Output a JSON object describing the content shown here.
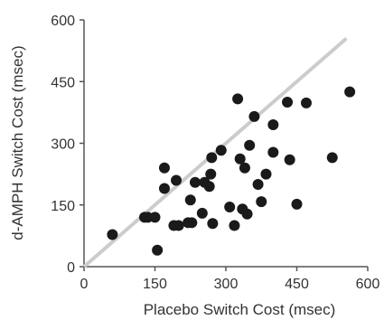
{
  "chart_data": {
    "type": "scatter",
    "title": "",
    "xlabel": "Placebo Switch Cost (msec)",
    "ylabel": "d-AMPH Switch Cost (msec)",
    "xlim": [
      0,
      600
    ],
    "ylim": [
      0,
      600
    ],
    "xticks": [
      "0",
      "150",
      "300",
      "450",
      "600"
    ],
    "yticks": [
      "0",
      "150",
      "300",
      "450",
      "600"
    ],
    "grid": false,
    "legend": "none",
    "reference_line": {
      "type": "identity",
      "from": [
        0,
        0
      ],
      "to": [
        555,
        555
      ],
      "color": "#cccccc"
    },
    "point_color": "#1a1a1a",
    "series": [
      {
        "points": [
          [
            60,
            78
          ],
          [
            128,
            120
          ],
          [
            135,
            120
          ],
          [
            150,
            120
          ],
          [
            155,
            40
          ],
          [
            170,
            240
          ],
          [
            170,
            190
          ],
          [
            190,
            100
          ],
          [
            195,
            210
          ],
          [
            200,
            100
          ],
          [
            220,
            107
          ],
          [
            228,
            107
          ],
          [
            225,
            162
          ],
          [
            235,
            205
          ],
          [
            250,
            130
          ],
          [
            255,
            205
          ],
          [
            265,
            195
          ],
          [
            268,
            225
          ],
          [
            272,
            105
          ],
          [
            270,
            265
          ],
          [
            290,
            283
          ],
          [
            308,
            145
          ],
          [
            318,
            100
          ],
          [
            325,
            408
          ],
          [
            330,
            262
          ],
          [
            335,
            140
          ],
          [
            340,
            240
          ],
          [
            345,
            128
          ],
          [
            350,
            295
          ],
          [
            360,
            365
          ],
          [
            368,
            200
          ],
          [
            375,
            158
          ],
          [
            385,
            225
          ],
          [
            400,
            345
          ],
          [
            400,
            278
          ],
          [
            430,
            400
          ],
          [
            435,
            260
          ],
          [
            450,
            152
          ],
          [
            470,
            398
          ],
          [
            525,
            265
          ],
          [
            562,
            425
          ]
        ]
      }
    ]
  }
}
